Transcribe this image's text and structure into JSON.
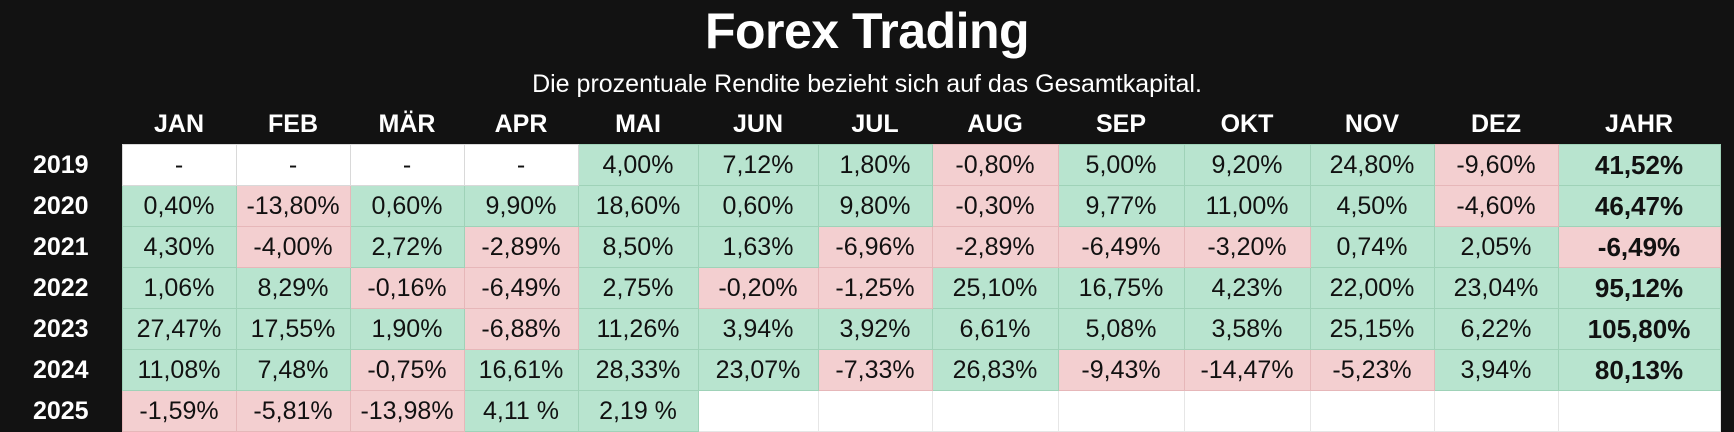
{
  "chart_data": {
    "type": "table",
    "title": "Forex Trading",
    "subtitle": "Die prozentuale Rendite bezieht sich auf das Gesamtkapital.",
    "columns": [
      "JAN",
      "FEB",
      "MÄR",
      "APR",
      "MAI",
      "JUN",
      "JUL",
      "AUG",
      "SEP",
      "OKT",
      "NOV",
      "DEZ",
      "JAHR"
    ],
    "rows": [
      {
        "year": "2019",
        "cells": [
          {
            "text": "-",
            "tone": "blank"
          },
          {
            "text": "-",
            "tone": "blank"
          },
          {
            "text": "-",
            "tone": "blank"
          },
          {
            "text": "-",
            "tone": "blank"
          },
          {
            "text": "4,00%",
            "tone": "pos"
          },
          {
            "text": "7,12%",
            "tone": "pos"
          },
          {
            "text": "1,80%",
            "tone": "pos"
          },
          {
            "text": "-0,80%",
            "tone": "neg"
          },
          {
            "text": "5,00%",
            "tone": "pos"
          },
          {
            "text": "9,20%",
            "tone": "pos"
          },
          {
            "text": "24,80%",
            "tone": "pos"
          },
          {
            "text": "-9,60%",
            "tone": "neg"
          },
          {
            "text": "41,52%",
            "tone": "pos"
          }
        ]
      },
      {
        "year": "2020",
        "cells": [
          {
            "text": "0,40%",
            "tone": "pos"
          },
          {
            "text": "-13,80%",
            "tone": "neg"
          },
          {
            "text": "0,60%",
            "tone": "pos"
          },
          {
            "text": "9,90%",
            "tone": "pos"
          },
          {
            "text": "18,60%",
            "tone": "pos"
          },
          {
            "text": "0,60%",
            "tone": "pos"
          },
          {
            "text": "9,80%",
            "tone": "pos"
          },
          {
            "text": "-0,30%",
            "tone": "neg"
          },
          {
            "text": "9,77%",
            "tone": "pos"
          },
          {
            "text": "11,00%",
            "tone": "pos"
          },
          {
            "text": "4,50%",
            "tone": "pos"
          },
          {
            "text": "-4,60%",
            "tone": "neg"
          },
          {
            "text": "46,47%",
            "tone": "pos"
          }
        ]
      },
      {
        "year": "2021",
        "cells": [
          {
            "text": "4,30%",
            "tone": "pos"
          },
          {
            "text": "-4,00%",
            "tone": "neg"
          },
          {
            "text": "2,72%",
            "tone": "pos"
          },
          {
            "text": "-2,89%",
            "tone": "neg"
          },
          {
            "text": "8,50%",
            "tone": "pos"
          },
          {
            "text": "1,63%",
            "tone": "pos"
          },
          {
            "text": "-6,96%",
            "tone": "neg"
          },
          {
            "text": "-2,89%",
            "tone": "neg"
          },
          {
            "text": "-6,49%",
            "tone": "neg"
          },
          {
            "text": "-3,20%",
            "tone": "neg"
          },
          {
            "text": "0,74%",
            "tone": "pos"
          },
          {
            "text": "2,05%",
            "tone": "pos"
          },
          {
            "text": "-6,49%",
            "tone": "neg"
          }
        ]
      },
      {
        "year": "2022",
        "cells": [
          {
            "text": "1,06%",
            "tone": "pos"
          },
          {
            "text": "8,29%",
            "tone": "pos"
          },
          {
            "text": "-0,16%",
            "tone": "neg"
          },
          {
            "text": "-6,49%",
            "tone": "neg"
          },
          {
            "text": "2,75%",
            "tone": "pos"
          },
          {
            "text": "-0,20%",
            "tone": "neg"
          },
          {
            "text": "-1,25%",
            "tone": "neg"
          },
          {
            "text": "25,10%",
            "tone": "pos"
          },
          {
            "text": "16,75%",
            "tone": "pos"
          },
          {
            "text": "4,23%",
            "tone": "pos"
          },
          {
            "text": "22,00%",
            "tone": "pos"
          },
          {
            "text": "23,04%",
            "tone": "pos"
          },
          {
            "text": "95,12%",
            "tone": "pos"
          }
        ]
      },
      {
        "year": "2023",
        "cells": [
          {
            "text": "27,47%",
            "tone": "pos"
          },
          {
            "text": "17,55%",
            "tone": "pos"
          },
          {
            "text": "1,90%",
            "tone": "pos"
          },
          {
            "text": "-6,88%",
            "tone": "neg"
          },
          {
            "text": "11,26%",
            "tone": "pos"
          },
          {
            "text": "3,94%",
            "tone": "pos"
          },
          {
            "text": "3,92%",
            "tone": "pos"
          },
          {
            "text": "6,61%",
            "tone": "pos"
          },
          {
            "text": "5,08%",
            "tone": "pos"
          },
          {
            "text": "3,58%",
            "tone": "pos"
          },
          {
            "text": "25,15%",
            "tone": "pos"
          },
          {
            "text": "6,22%",
            "tone": "pos"
          },
          {
            "text": "105,80%",
            "tone": "pos"
          }
        ]
      },
      {
        "year": "2024",
        "cells": [
          {
            "text": "11,08%",
            "tone": "pos"
          },
          {
            "text": "7,48%",
            "tone": "pos"
          },
          {
            "text": "-0,75%",
            "tone": "neg"
          },
          {
            "text": "16,61%",
            "tone": "pos"
          },
          {
            "text": "28,33%",
            "tone": "pos"
          },
          {
            "text": "23,07%",
            "tone": "pos"
          },
          {
            "text": "-7,33%",
            "tone": "neg"
          },
          {
            "text": "26,83%",
            "tone": "pos"
          },
          {
            "text": "-9,43%",
            "tone": "neg"
          },
          {
            "text": "-14,47%",
            "tone": "neg"
          },
          {
            "text": "-5,23%",
            "tone": "neg"
          },
          {
            "text": "3,94%",
            "tone": "pos"
          },
          {
            "text": "80,13%",
            "tone": "pos"
          }
        ]
      },
      {
        "year": "2025",
        "cells": [
          {
            "text": "-1,59%",
            "tone": "neg"
          },
          {
            "text": "-5,81%",
            "tone": "neg"
          },
          {
            "text": "-13,98%",
            "tone": "neg"
          },
          {
            "text": "4,11 %",
            "tone": "pos"
          },
          {
            "text": "2,19 %",
            "tone": "pos"
          },
          {
            "text": "",
            "tone": "empty"
          },
          {
            "text": "",
            "tone": "empty"
          },
          {
            "text": "",
            "tone": "empty"
          },
          {
            "text": "",
            "tone": "empty"
          },
          {
            "text": "",
            "tone": "empty"
          },
          {
            "text": "",
            "tone": "empty"
          },
          {
            "text": "",
            "tone": "empty"
          },
          {
            "text": "",
            "tone": "empty"
          }
        ]
      }
    ],
    "colors": {
      "positive": "#b8e4cf",
      "negative": "#f3cfd0",
      "blank": "#ffffff",
      "background": "#121212"
    }
  }
}
